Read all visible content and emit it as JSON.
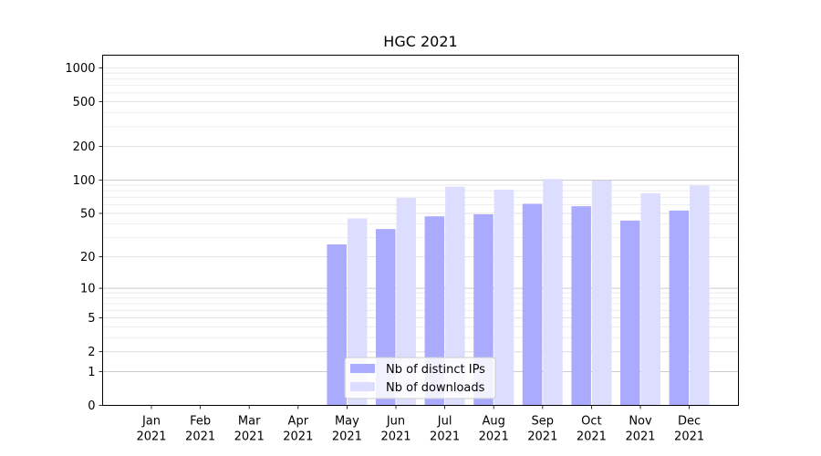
{
  "chart_data": {
    "type": "bar",
    "title": "HGC 2021",
    "xlabel": "",
    "ylabel": "",
    "yscale": "symlog",
    "ylim": [
      0,
      1300
    ],
    "y_major_ticks": [
      0,
      1,
      2,
      5,
      10,
      20,
      50,
      100,
      200,
      500,
      1000
    ],
    "grid": true,
    "legend_position": "lower-center",
    "categories": [
      [
        "Jan",
        "2021"
      ],
      [
        "Feb",
        "2021"
      ],
      [
        "Mar",
        "2021"
      ],
      [
        "Apr",
        "2021"
      ],
      [
        "May",
        "2021"
      ],
      [
        "Jun",
        "2021"
      ],
      [
        "Jul",
        "2021"
      ],
      [
        "Aug",
        "2021"
      ],
      [
        "Sep",
        "2021"
      ],
      [
        "Oct",
        "2021"
      ],
      [
        "Nov",
        "2021"
      ],
      [
        "Dec",
        "2021"
      ]
    ],
    "series": [
      {
        "name": "Nb of distinct IPs",
        "color": "#aaaaff",
        "values": [
          0,
          0,
          0,
          0,
          26,
          36,
          47,
          49,
          61,
          58,
          43,
          53
        ]
      },
      {
        "name": "Nb of downloads",
        "color": "#ddddff",
        "values": [
          0,
          0,
          0,
          0,
          45,
          69,
          87,
          82,
          102,
          99,
          76,
          89
        ]
      }
    ]
  }
}
